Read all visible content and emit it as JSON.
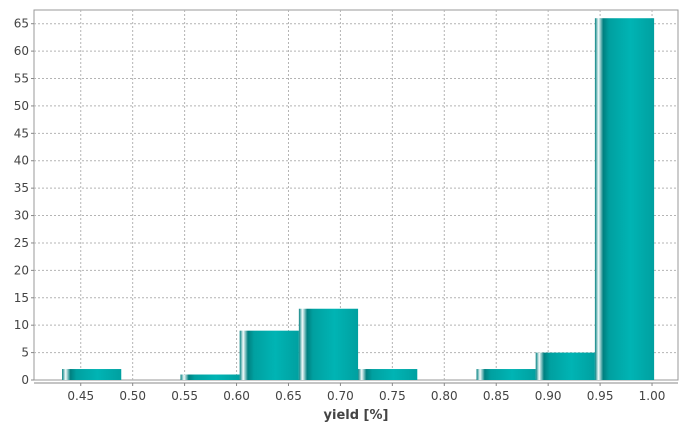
{
  "chart_data": {
    "type": "bar",
    "title": "",
    "xlabel": "yield [%]",
    "ylabel": "",
    "xlim": [
      0.405,
      1.025
    ],
    "ylim": [
      0,
      67.5
    ],
    "x_ticks": [
      "0.45",
      "0.50",
      "0.55",
      "0.60",
      "0.65",
      "0.70",
      "0.75",
      "0.80",
      "0.85",
      "0.90",
      "0.95",
      "1.00"
    ],
    "y_ticks": [
      "0",
      "5",
      "10",
      "15",
      "20",
      "25",
      "30",
      "35",
      "40",
      "45",
      "50",
      "55",
      "60",
      "65"
    ],
    "grid": true,
    "bins": [
      {
        "start": 0.432,
        "end": 0.489,
        "count": 2
      },
      {
        "start": 0.489,
        "end": 0.546,
        "count": 0
      },
      {
        "start": 0.546,
        "end": 0.603,
        "count": 1
      },
      {
        "start": 0.603,
        "end": 0.66,
        "count": 9
      },
      {
        "start": 0.66,
        "end": 0.717,
        "count": 13
      },
      {
        "start": 0.717,
        "end": 0.774,
        "count": 2
      },
      {
        "start": 0.774,
        "end": 0.831,
        "count": 0
      },
      {
        "start": 0.831,
        "end": 0.888,
        "count": 2
      },
      {
        "start": 0.888,
        "end": 0.945,
        "count": 5
      },
      {
        "start": 0.945,
        "end": 1.002,
        "count": 66
      }
    ]
  },
  "colors": {
    "bar_dark": "#008080",
    "bar_mid": "#00a0a0",
    "bar_light": "#00b4b4",
    "bar_highlight": "#f4fbfb",
    "grid": "#b4b4b4",
    "axis": "#888888",
    "text": "#444444"
  }
}
